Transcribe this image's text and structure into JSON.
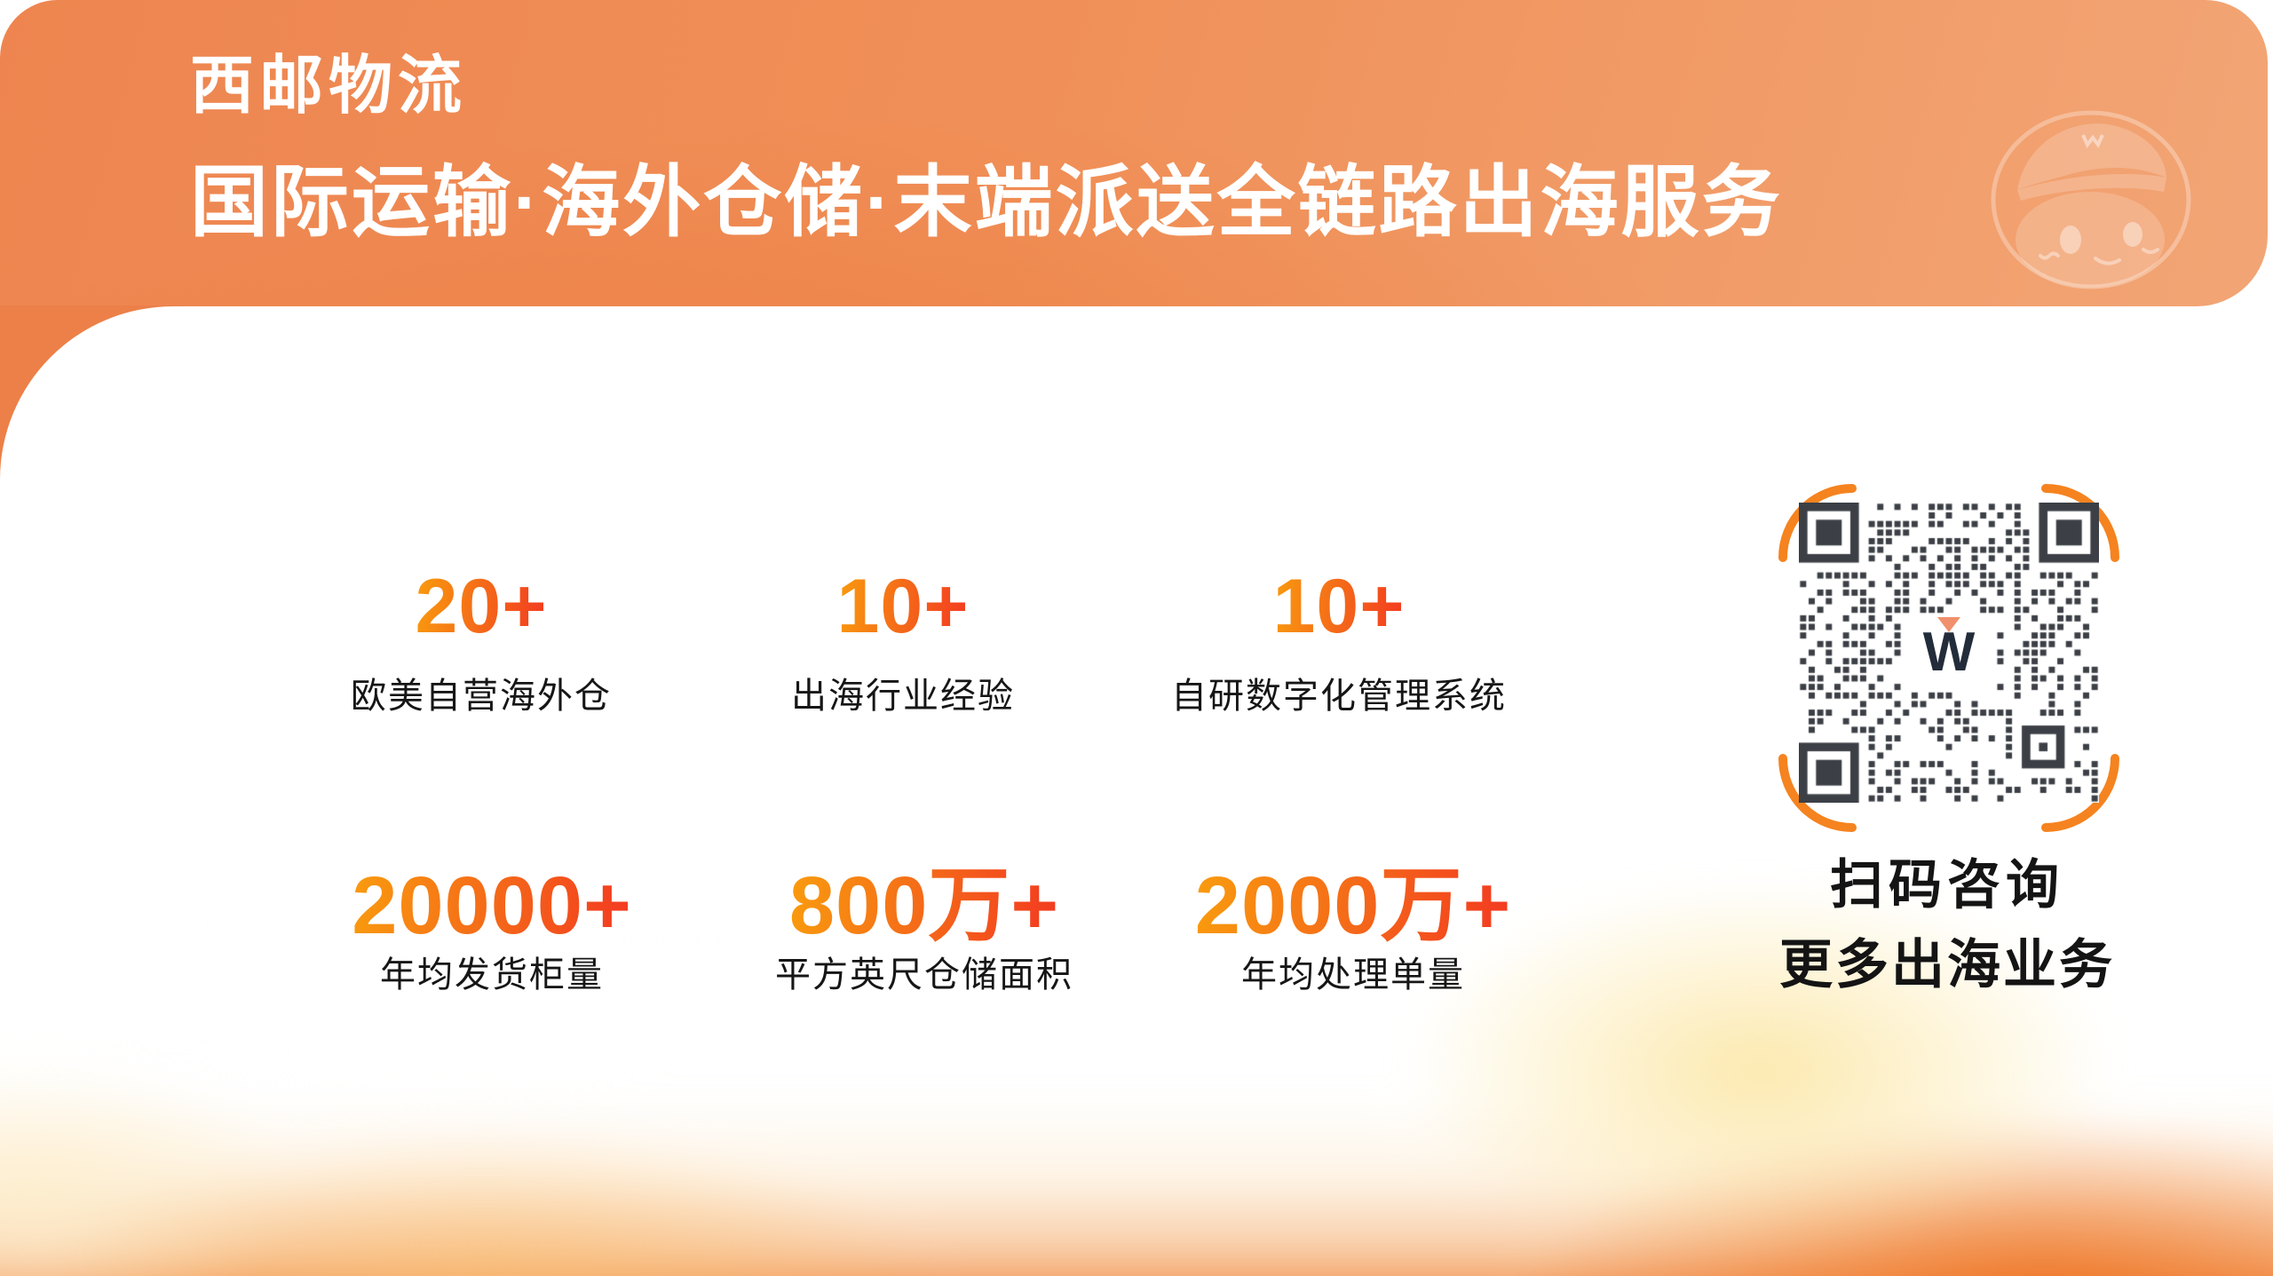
{
  "header": {
    "brand": "西邮物流",
    "tagline": "国际运输·海外仓储·末端派送全链路出海服务"
  },
  "stats": {
    "row1": [
      {
        "value": "20+",
        "label": "欧美自营海外仓"
      },
      {
        "value": "10+",
        "label": "出海行业经验"
      },
      {
        "value": "10+",
        "label": "自研数字化管理系统"
      }
    ],
    "row2": [
      {
        "value": "20000+",
        "label": "年均发货柜量"
      },
      {
        "value": "800万+",
        "label": "平方英尺仓储面积"
      },
      {
        "value": "2000万+",
        "label": "年均处理单量"
      }
    ]
  },
  "qr": {
    "caption_line1": "扫码咨询",
    "caption_line2": "更多出海业务",
    "logo_letter": "W"
  },
  "icons": {
    "mascot": "mascot-face-with-cap",
    "corner_brackets": "qr-scan-frame",
    "logo_triangle": "down-triangle"
  },
  "colors": {
    "header_grad_start": "#ee8550",
    "header_grad_mid": "#f09058",
    "header_grad_end": "#f2a575",
    "stat_grad_start": "#f99a0e",
    "stat_grad_mid": "#f4641a",
    "stat_grad_end": "#f33b20",
    "bracket_orange": "#f5831f",
    "qr_module_dark": "#3c4046",
    "logo_navy": "#232c3a",
    "logo_triangle_salmon": "#f0906c",
    "text_dark": "#161616",
    "glow_orange": "#ee7624",
    "glow_cream": "#fce8aa"
  }
}
